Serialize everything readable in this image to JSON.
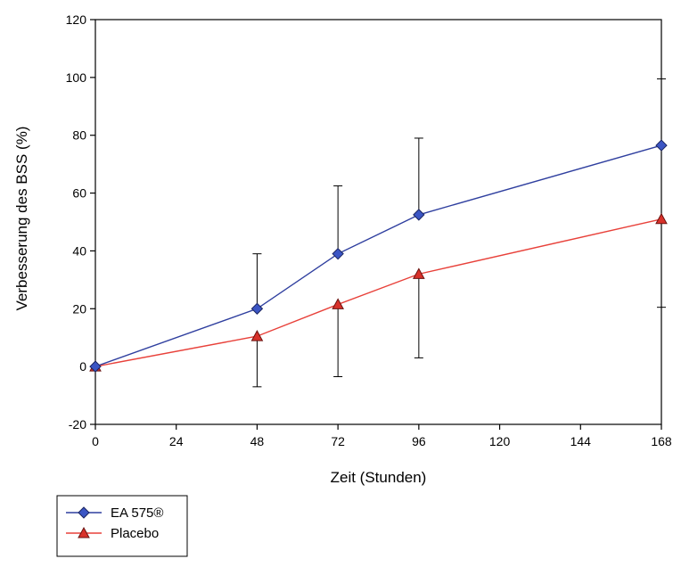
{
  "chart_data": {
    "type": "line",
    "title": "",
    "xlabel": "Zeit (Stunden)",
    "ylabel": "Verbesserung des BSS (%)",
    "xlim": [
      0,
      168
    ],
    "ylim": [
      -20,
      120
    ],
    "xticks": [
      0,
      24,
      48,
      72,
      96,
      120,
      144,
      168
    ],
    "yticks": [
      -20,
      0,
      20,
      40,
      60,
      80,
      100,
      120
    ],
    "grid": false,
    "legend_position": "bottom-left",
    "series": [
      {
        "name": "EA 575®",
        "color": "#2f3f9f",
        "marker": "diamond",
        "marker_color": "#3b55c4",
        "x": [
          0,
          48,
          72,
          96,
          168
        ],
        "values": [
          0,
          20,
          39,
          52.5,
          76.5
        ],
        "error_upper": [
          null,
          39,
          62.5,
          79,
          99.5
        ],
        "error_lower": [
          null,
          null,
          null,
          null,
          null
        ]
      },
      {
        "name": "Placebo",
        "color": "#e8413a",
        "marker": "triangle",
        "marker_color": "#d8312a",
        "x": [
          0,
          48,
          72,
          96,
          168
        ],
        "values": [
          0,
          10.5,
          21.5,
          32,
          51
        ],
        "error_upper": [
          null,
          null,
          null,
          null,
          null
        ],
        "error_lower": [
          null,
          -7,
          -3.5,
          3,
          20.5
        ]
      }
    ]
  }
}
